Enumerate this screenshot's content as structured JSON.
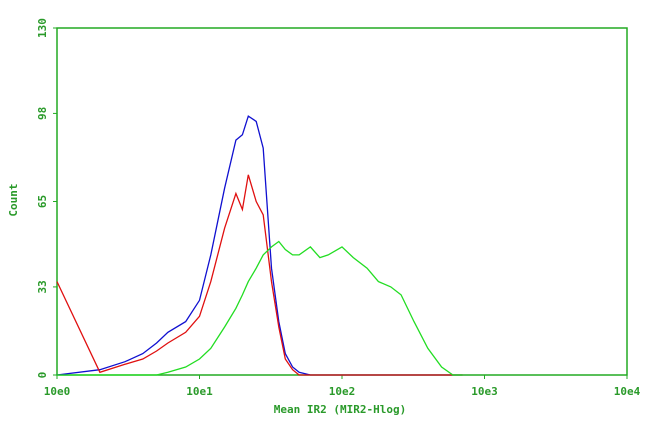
{
  "chart_data": {
    "type": "line",
    "x_label": "Mean IR2 (MIR2-Hlog)",
    "y_label": "Count",
    "xscale": "log",
    "grid": false,
    "xlim": [
      1,
      10000
    ],
    "xticks": [
      {
        "value": 1,
        "label": "10e0"
      },
      {
        "value": 10,
        "label": "10e1"
      },
      {
        "value": 100,
        "label": "10e2"
      },
      {
        "value": 1000,
        "label": "10e3"
      },
      {
        "value": 10000,
        "label": "10e4"
      }
    ],
    "ylim": [
      0,
      130
    ],
    "yticks": [
      0,
      33,
      65,
      98,
      130
    ],
    "x": [
      1,
      2,
      3,
      4,
      5,
      6,
      8,
      10,
      12,
      15,
      18,
      20,
      22,
      25,
      28,
      32,
      36,
      40,
      45,
      50,
      60,
      70,
      80,
      100,
      120,
      150,
      180,
      220,
      260,
      320,
      400,
      500,
      600,
      700
    ],
    "series": [
      {
        "name": "Blue",
        "color": "#1010d0",
        "values": [
          0,
          2,
          5,
          8,
          12,
          16,
          20,
          28,
          45,
          70,
          88,
          90,
          97,
          95,
          85,
          40,
          20,
          8,
          3,
          1,
          0,
          0,
          0,
          0,
          0,
          0,
          0,
          0,
          0,
          0,
          0,
          0,
          0,
          0
        ]
      },
      {
        "name": "Red",
        "color": "#e01010",
        "values": [
          35,
          1,
          4,
          6,
          9,
          12,
          16,
          22,
          35,
          55,
          68,
          62,
          75,
          65,
          60,
          35,
          18,
          6,
          2,
          0,
          0,
          0,
          0,
          0,
          0,
          0,
          0,
          0,
          0,
          0,
          0,
          0,
          0,
          0
        ]
      },
      {
        "name": "Green",
        "color": "#22dd22",
        "values": [
          0,
          0,
          0,
          0,
          0,
          1,
          3,
          6,
          10,
          18,
          25,
          30,
          35,
          40,
          45,
          48,
          50,
          47,
          45,
          45,
          48,
          44,
          45,
          48,
          44,
          40,
          35,
          33,
          30,
          20,
          10,
          3,
          0,
          0
        ]
      }
    ]
  }
}
